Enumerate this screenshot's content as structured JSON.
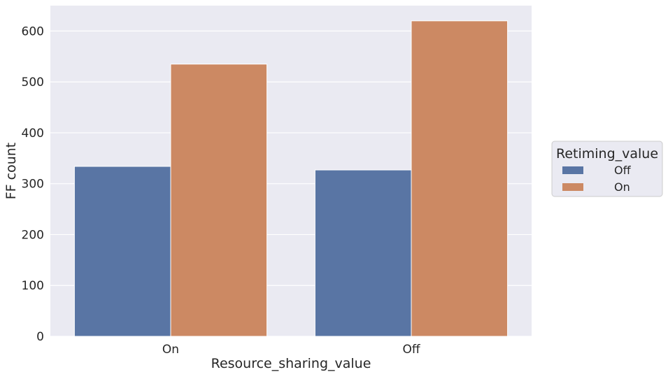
{
  "chart_data": {
    "type": "bar",
    "title": "",
    "xlabel": "Resource_sharing_value",
    "ylabel": "FF count",
    "categories": [
      "On",
      "Off"
    ],
    "series": [
      {
        "name": "Off",
        "values": [
          334,
          327
        ],
        "color": "#5975a4"
      },
      {
        "name": "On",
        "values": [
          535,
          620
        ],
        "color": "#cc8963"
      }
    ],
    "ylim": [
      0,
      650
    ],
    "yticks": [
      0,
      100,
      200,
      300,
      400,
      500,
      600
    ],
    "grid": true,
    "legend": {
      "title": "Retiming_value",
      "placement": "center-right, outside plot",
      "entries": [
        "Off",
        "On"
      ]
    },
    "colors": {
      "plot_background": "#eaeaf2",
      "grid": "#ffffff",
      "text": "#262626"
    }
  }
}
